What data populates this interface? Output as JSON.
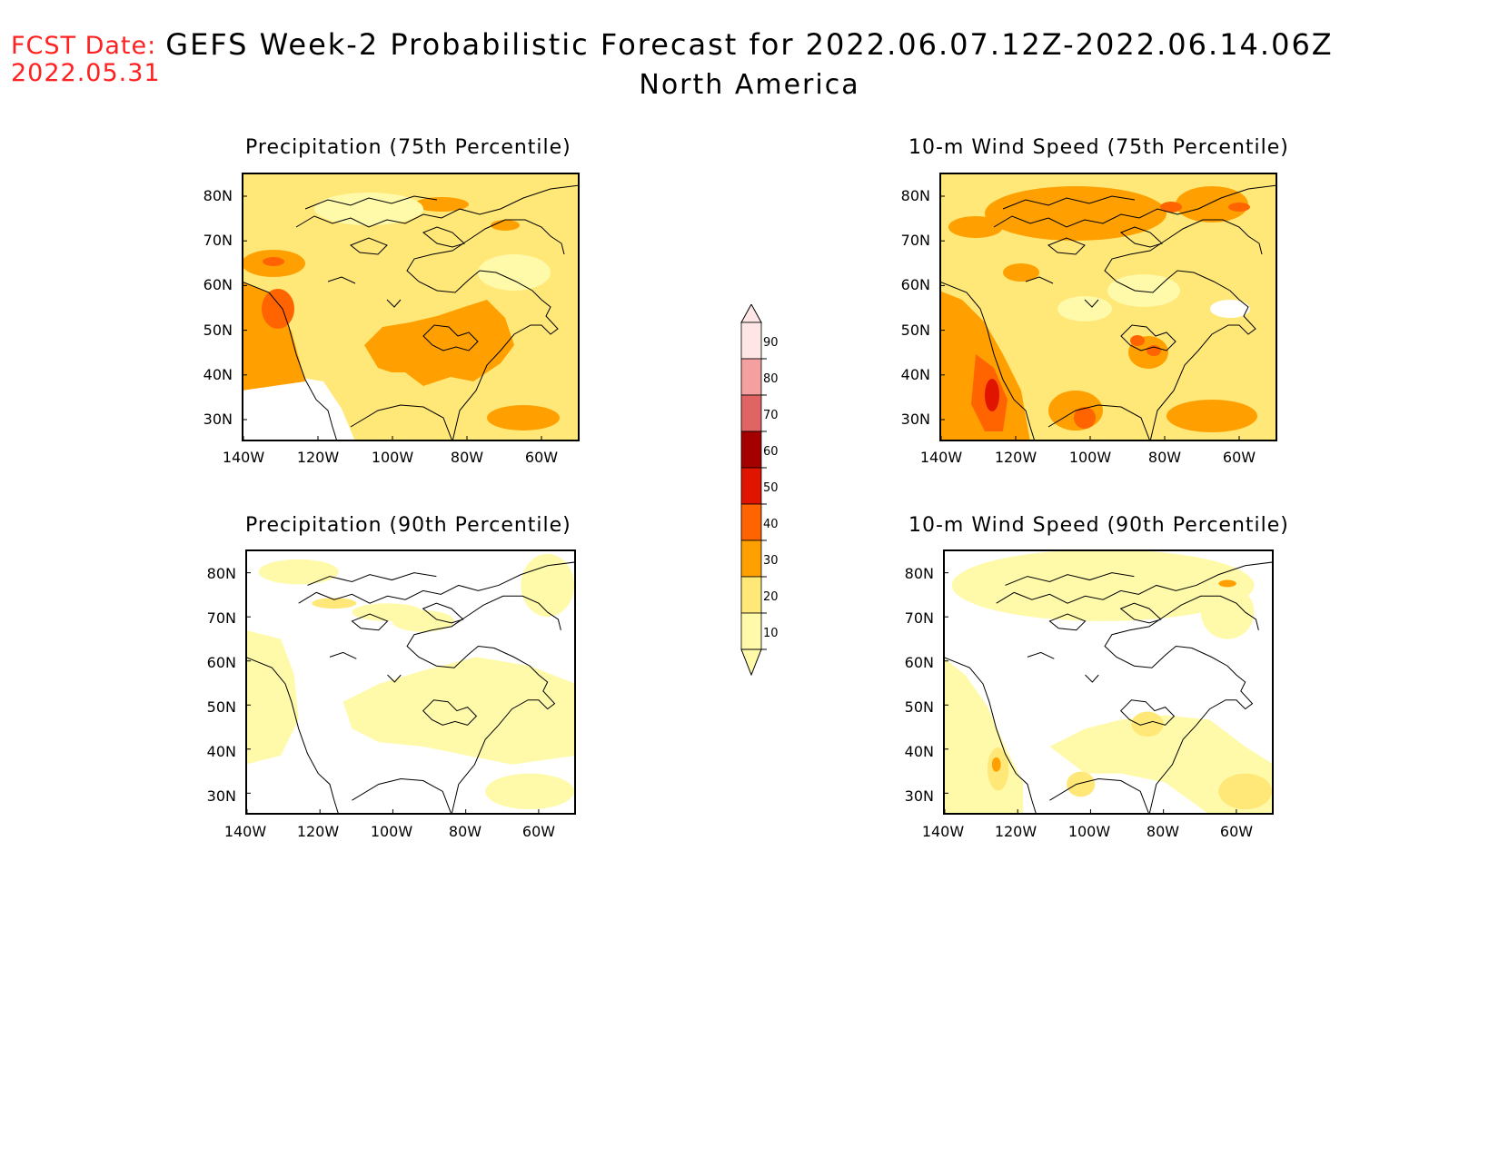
{
  "header": {
    "fcst_label": "FCST Date:",
    "fcst_date": "2022.05.31",
    "title": "GEFS Week-2 Probabilistic Forecast for 2022.06.07.12Z-2022.06.14.06Z",
    "region": "North America"
  },
  "panels": [
    {
      "title": "Precipitation (75th Percentile)",
      "variable": "precipitation",
      "percentile": 75
    },
    {
      "title": "10-m Wind Speed (75th Percentile)",
      "variable": "wind_speed_10m",
      "percentile": 75
    },
    {
      "title": "Precipitation (90th Percentile)",
      "variable": "precipitation",
      "percentile": 90
    },
    {
      "title": "10-m Wind Speed (90th Percentile)",
      "variable": "wind_speed_10m",
      "percentile": 90
    }
  ],
  "axes": {
    "lat_labels": [
      "80N",
      "70N",
      "60N",
      "50N",
      "40N",
      "30N"
    ],
    "lon_labels": [
      "140W",
      "120W",
      "100W",
      "80W",
      "60W"
    ]
  },
  "colorbar": {
    "levels": [
      "10",
      "20",
      "30",
      "40",
      "50",
      "60",
      "70",
      "80",
      "90"
    ],
    "colors": [
      "#fffaaa",
      "#ffe878",
      "#ffa000",
      "#ff6400",
      "#e11400",
      "#a50000",
      "#e16464",
      "#f5a0a0",
      "#ffe6e6"
    ]
  }
}
